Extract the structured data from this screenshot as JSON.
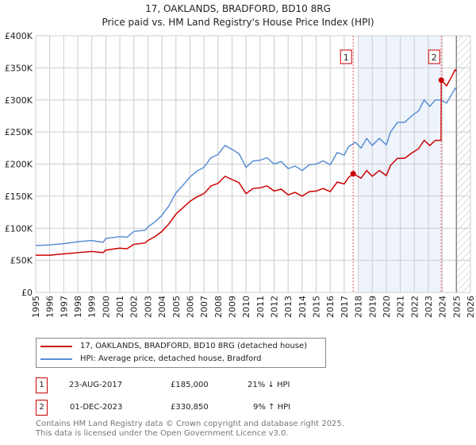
{
  "title": "17, OAKLANDS, BRADFORD, BD10 8RG",
  "subtitle": "Price paid vs. HM Land Registry's House Price Index (HPI)",
  "legend": {
    "price": "17, OAKLANDS, BRADFORD, BD10 8RG (detached house)",
    "hpi": "HPI: Average price, detached house, Bradford"
  },
  "sales": [
    {
      "num": "1",
      "date": "23-AUG-2017",
      "price": "£185,000",
      "hpi": "21% ↓ HPI",
      "x": 2017.64,
      "y": 185
    },
    {
      "num": "2",
      "date": "01-DEC-2023",
      "price": "£330,850",
      "hpi": "9% ↑ HPI",
      "x": 2023.92,
      "y": 330.85
    }
  ],
  "footer": {
    "line1": "Contains HM Land Registry data © Crown copyright and database right 2025.",
    "line2": "This data is licensed under the Open Government Licence v3.0."
  },
  "chart_data": {
    "type": "line",
    "xlim": [
      1995,
      2026
    ],
    "ylim": [
      0,
      400
    ],
    "yticks": [
      0,
      50,
      100,
      150,
      200,
      250,
      300,
      350,
      400
    ],
    "ytick_labels": [
      "£0",
      "£50K",
      "£100K",
      "£150K",
      "£200K",
      "£250K",
      "£300K",
      "£350K",
      "£400K"
    ],
    "xticks": [
      1995,
      1996,
      1997,
      1998,
      1999,
      2000,
      2001,
      2002,
      2003,
      2004,
      2005,
      2006,
      2007,
      2008,
      2009,
      2010,
      2011,
      2012,
      2013,
      2014,
      2015,
      2016,
      2017,
      2018,
      2019,
      2020,
      2021,
      2022,
      2023,
      2024,
      2025,
      2026
    ],
    "shaded_range": [
      2018,
      2023.92
    ],
    "future_from": 2025,
    "colors": {
      "price": "#cc0000",
      "hpi": "#5b8fd4",
      "shade": "#eef3fc"
    },
    "series": [
      {
        "name": "HPI",
        "x": [
          1995,
          1996,
          1997,
          1998,
          1999,
          1999.8,
          2000,
          2001,
          2001.5,
          2002,
          2002.8,
          2003,
          2003.5,
          2004,
          2004.5,
          2005,
          2005.5,
          2006,
          2006.5,
          2007,
          2007.5,
          2008,
          2008.5,
          2009,
          2009.5,
          2010,
          2010.5,
          2011,
          2011.5,
          2012,
          2012.5,
          2013,
          2013.5,
          2014,
          2014.5,
          2015,
          2015.5,
          2016,
          2016.5,
          2017,
          2017.3,
          2017.8,
          2018.2,
          2018.6,
          2019,
          2019.5,
          2020,
          2020.3,
          2020.8,
          2021.3,
          2021.8,
          2022.3,
          2022.7,
          2023.1,
          2023.5,
          2023.9,
          2024.3,
          2024.7,
          2024.9,
          2025
        ],
        "values": [
          73,
          74,
          76,
          79,
          81,
          78,
          84,
          87,
          86,
          95,
          97,
          102,
          110,
          120,
          135,
          155,
          167,
          180,
          189,
          195,
          210,
          215,
          229,
          223,
          216,
          195,
          205,
          206,
          210,
          200,
          204,
          193,
          197,
          190,
          199,
          200,
          205,
          199,
          218,
          214,
          227,
          234,
          225,
          240,
          229,
          240,
          230,
          250,
          265,
          265,
          275,
          283,
          300,
          290,
          300,
          300,
          295,
          310,
          318,
          316
        ]
      },
      {
        "name": "Price paid",
        "x": [
          1995,
          1996,
          1997,
          1998,
          1999,
          1999.8,
          2000,
          2001,
          2001.5,
          2002,
          2002.8,
          2003,
          2003.5,
          2004,
          2004.5,
          2005,
          2005.5,
          2006,
          2006.5,
          2007,
          2007.5,
          2008,
          2008.5,
          2009,
          2009.5,
          2010,
          2010.5,
          2011,
          2011.5,
          2012,
          2012.5,
          2013,
          2013.5,
          2014,
          2014.5,
          2015,
          2015.5,
          2016,
          2016.5,
          2017,
          2017.3,
          2017.64,
          2018.2,
          2018.6,
          2019,
          2019.5,
          2020,
          2020.3,
          2020.8,
          2021.3,
          2021.8,
          2022.3,
          2022.7,
          2023.1,
          2023.5,
          2023.9,
          2023.92,
          2024.3,
          2024.7,
          2024.9,
          2025
        ],
        "values": [
          58,
          58,
          60,
          62,
          64,
          62,
          66,
          69,
          68,
          75,
          77,
          81,
          87,
          95,
          107,
          122,
          132,
          142,
          149,
          154,
          166,
          170,
          181,
          176,
          171,
          154,
          162,
          163,
          166,
          158,
          161,
          152,
          156,
          150,
          157,
          158,
          162,
          157,
          172,
          169,
          179,
          185,
          178,
          190,
          181,
          190,
          182,
          198,
          209,
          209,
          217,
          224,
          237,
          229,
          237,
          237,
          330.85,
          322,
          338,
          347,
          345
        ]
      }
    ]
  }
}
